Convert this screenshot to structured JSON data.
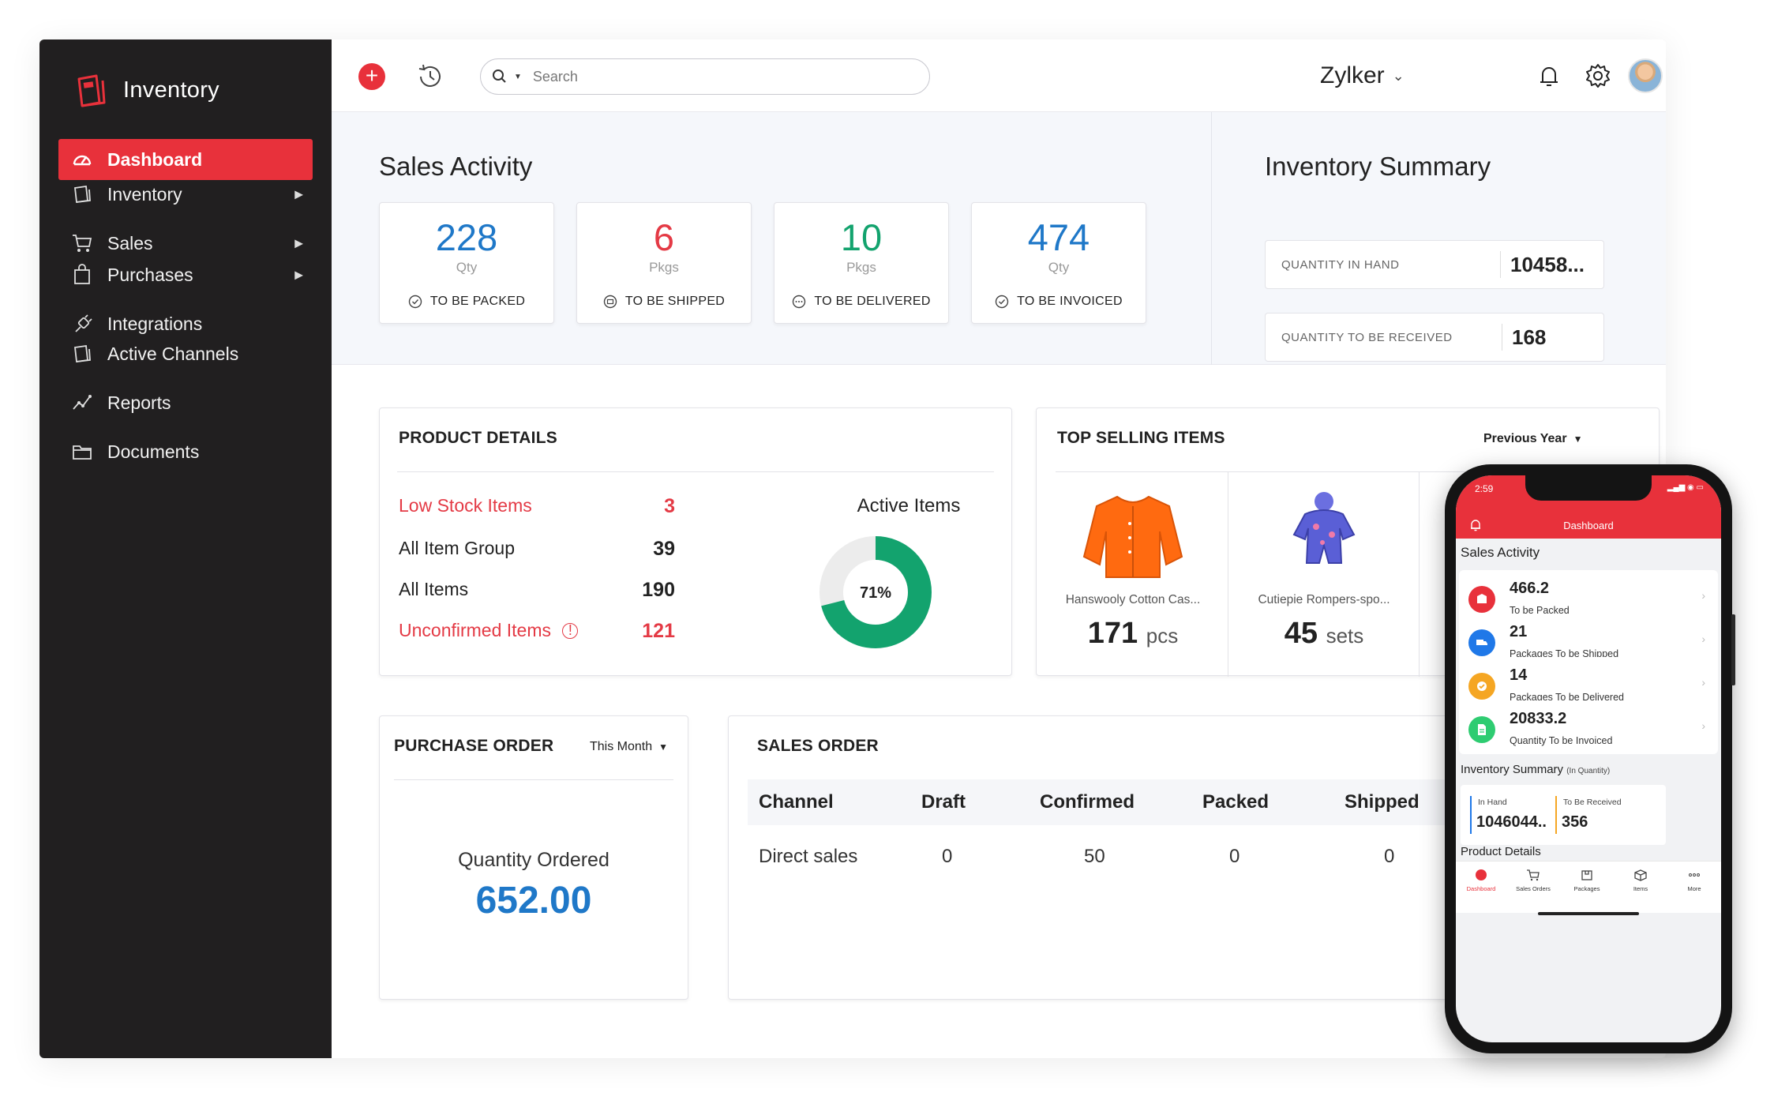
{
  "brand": {
    "name": "Inventory"
  },
  "sidebar": {
    "items": [
      {
        "label": "Dashboard",
        "icon": "dashboard-icon",
        "active": true
      },
      {
        "label": "Inventory",
        "icon": "box-icon",
        "has_submenu": true
      },
      {
        "label": "Sales",
        "icon": "cart-icon",
        "has_submenu": true
      },
      {
        "label": "Purchases",
        "icon": "bag-icon",
        "has_submenu": true
      },
      {
        "label": "Integrations",
        "icon": "plug-icon"
      },
      {
        "label": "Active Channels",
        "icon": "channels-icon"
      },
      {
        "label": "Reports",
        "icon": "reports-icon"
      },
      {
        "label": "Documents",
        "icon": "folder-icon"
      }
    ]
  },
  "topbar": {
    "search_placeholder": "Search",
    "org_name": "Zylker",
    "accent": "#e8313b"
  },
  "sales_activity": {
    "title": "Sales Activity",
    "cards": [
      {
        "value": "228",
        "unit": "Qty",
        "label": "TO BE PACKED",
        "color": "#1f78c8"
      },
      {
        "value": "6",
        "unit": "Pkgs",
        "label": "TO BE SHIPPED",
        "color": "#e43a45"
      },
      {
        "value": "10",
        "unit": "Pkgs",
        "label": "TO BE DELIVERED",
        "color": "#13a36e"
      },
      {
        "value": "474",
        "unit": "Qty",
        "label": "TO BE INVOICED",
        "color": "#1f78c8"
      }
    ]
  },
  "inventory_summary": {
    "title": "Inventory Summary",
    "rows": [
      {
        "label": "QUANTITY IN HAND",
        "value": "10458..."
      },
      {
        "label": "QUANTITY TO BE RECEIVED",
        "value": "168"
      }
    ]
  },
  "product_details": {
    "title": "PRODUCT DETAILS",
    "rows": [
      {
        "label": "Low Stock Items",
        "value": "3",
        "highlight": true
      },
      {
        "label": "All Item Group",
        "value": "39"
      },
      {
        "label": "All Items",
        "value": "190"
      },
      {
        "label": "Unconfirmed Items",
        "value": "121",
        "highlight": true
      }
    ],
    "active_items": {
      "label": "Active Items",
      "percent_label": "71%",
      "fraction": 0.71,
      "color": "#13a36e"
    }
  },
  "top_selling": {
    "title": "TOP SELLING ITEMS",
    "period": "Previous Year",
    "items": [
      {
        "name": "Hanswooly Cotton Cas...",
        "qty": "171",
        "unit": "pcs"
      },
      {
        "name": "Cutiepie Rompers-spo...",
        "qty": "45",
        "unit": "sets"
      }
    ]
  },
  "purchase_order": {
    "title": "PURCHASE ORDER",
    "period": "This Month",
    "label": "Quantity Ordered",
    "value": "652.00"
  },
  "sales_order": {
    "title": "SALES ORDER",
    "columns": [
      "Channel",
      "Draft",
      "Confirmed",
      "Packed",
      "Shipped"
    ],
    "rows": [
      [
        "Direct sales",
        "0",
        "50",
        "0",
        "0"
      ]
    ]
  },
  "phone": {
    "time": "2:59",
    "title": "Dashboard",
    "sales_activity_label": "Sales Activity",
    "cards": [
      {
        "value": "466.2",
        "label": "To be Packed",
        "color": "#e8313b"
      },
      {
        "value": "21",
        "label": "Packages To be Shipped",
        "color": "#1f78e8"
      },
      {
        "value": "14",
        "label": "Packages To be Delivered",
        "color": "#f5a623"
      },
      {
        "value": "20833.2",
        "label": "Quantity To be Invoiced",
        "color": "#2ecc71"
      }
    ],
    "inventory_summary_label": "Inventory Summary",
    "inventory_summary_note": "(In Quantity)",
    "in_hand_label": "In Hand",
    "in_hand_value": "1046044...",
    "to_receive_label": "To Be Received",
    "to_receive_value": "356",
    "product_details_label": "Product Details",
    "tabs": [
      "Dashboard",
      "Sales Orders",
      "Packages",
      "Items",
      "More"
    ]
  }
}
